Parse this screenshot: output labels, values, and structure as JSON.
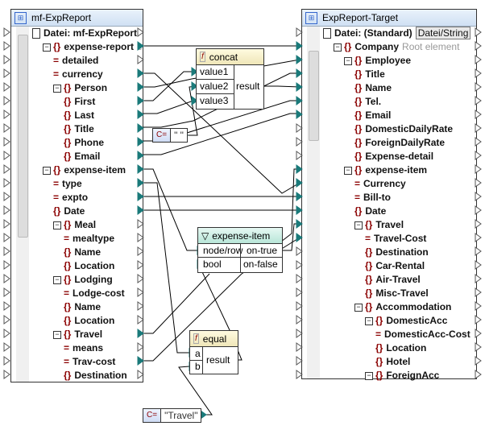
{
  "source": {
    "title": "mf-ExpReport",
    "file_label": "Datei: mf-ExpReport",
    "rows": [
      {
        "label": "Datei: mf-ExpReport",
        "kind": "doc",
        "level": 0
      },
      {
        "label": "expense-report",
        "kind": "el",
        "level": 1,
        "exp": true,
        "hint": "e"
      },
      {
        "label": "detailed",
        "kind": "at",
        "level": 2
      },
      {
        "label": "currency",
        "kind": "at",
        "level": 2
      },
      {
        "label": "Person",
        "kind": "el",
        "level": 2,
        "exp": true
      },
      {
        "label": "First",
        "kind": "el",
        "level": 3
      },
      {
        "label": "Last",
        "kind": "el",
        "level": 3
      },
      {
        "label": "Title",
        "kind": "el",
        "level": 3
      },
      {
        "label": "Phone",
        "kind": "el",
        "level": 3
      },
      {
        "label": "Email",
        "kind": "el",
        "level": 3
      },
      {
        "label": "expense-item",
        "kind": "el",
        "level": 1,
        "exp": true
      },
      {
        "label": "type",
        "kind": "at",
        "level": 2
      },
      {
        "label": "expto",
        "kind": "at",
        "level": 2
      },
      {
        "label": "Date",
        "kind": "el",
        "level": 2
      },
      {
        "label": "Meal",
        "kind": "el",
        "level": 2,
        "exp": true
      },
      {
        "label": "mealtype",
        "kind": "at",
        "level": 3
      },
      {
        "label": "Name",
        "kind": "el",
        "level": 3
      },
      {
        "label": "Location",
        "kind": "el",
        "level": 3
      },
      {
        "label": "Lodging",
        "kind": "el",
        "level": 2,
        "exp": true
      },
      {
        "label": "Lodge-cost",
        "kind": "at",
        "level": 3
      },
      {
        "label": "Name",
        "kind": "el",
        "level": 3
      },
      {
        "label": "Location",
        "kind": "el",
        "level": 3
      },
      {
        "label": "Travel",
        "kind": "el",
        "level": 2,
        "exp": true
      },
      {
        "label": "means",
        "kind": "at",
        "level": 3
      },
      {
        "label": "Trav-cost",
        "kind": "at",
        "level": 3
      },
      {
        "label": "Destination",
        "kind": "el",
        "level": 3
      }
    ]
  },
  "target": {
    "title": "ExpReport-Target",
    "file_button": "Datei/String",
    "rows": [
      {
        "label": "Datei: (Standard)",
        "kind": "doc",
        "level": 0,
        "button": true
      },
      {
        "label": "Company",
        "kind": "el",
        "level": 1,
        "exp": true,
        "hint": "Root element"
      },
      {
        "label": "Employee",
        "kind": "el",
        "level": 2,
        "exp": true
      },
      {
        "label": "Title",
        "kind": "el",
        "level": 3
      },
      {
        "label": "Name",
        "kind": "el",
        "level": 3
      },
      {
        "label": "Tel.",
        "kind": "el",
        "level": 3
      },
      {
        "label": "Email",
        "kind": "el",
        "level": 3
      },
      {
        "label": "DomesticDailyRate",
        "kind": "el",
        "level": 3
      },
      {
        "label": "ForeignDailyRate",
        "kind": "el",
        "level": 3
      },
      {
        "label": "Expense-detail",
        "kind": "el",
        "level": 3
      },
      {
        "label": "expense-item",
        "kind": "el",
        "level": 2,
        "exp": true
      },
      {
        "label": "Currency",
        "kind": "at",
        "level": 3
      },
      {
        "label": "Bill-to",
        "kind": "at",
        "level": 3
      },
      {
        "label": "Date",
        "kind": "el",
        "level": 3
      },
      {
        "label": "Travel",
        "kind": "el",
        "level": 3,
        "exp": true
      },
      {
        "label": "Travel-Cost",
        "kind": "at",
        "level": 4
      },
      {
        "label": "Destination",
        "kind": "el",
        "level": 4
      },
      {
        "label": "Car-Rental",
        "kind": "el",
        "level": 4
      },
      {
        "label": "Air-Travel",
        "kind": "el",
        "level": 4
      },
      {
        "label": "Misc-Travel",
        "kind": "el",
        "level": 4
      },
      {
        "label": "Accommodation",
        "kind": "el",
        "level": 3,
        "exp": true
      },
      {
        "label": "DomesticAcc",
        "kind": "el",
        "level": 4,
        "exp": true
      },
      {
        "label": "DomesticAcc-Cost",
        "kind": "at",
        "level": 5
      },
      {
        "label": "Location",
        "kind": "el",
        "level": 5
      },
      {
        "label": "Hotel",
        "kind": "el",
        "level": 5
      },
      {
        "label": "ForeignAcc",
        "kind": "el",
        "level": 4,
        "exp": true
      }
    ]
  },
  "concat": {
    "title": "concat",
    "inputs": [
      "value1",
      "value2",
      "value3"
    ],
    "output": "result"
  },
  "filter": {
    "title": "expense-item",
    "inputs": [
      "node/row",
      "bool"
    ],
    "outputs": [
      "on-true",
      "on-false"
    ]
  },
  "equal": {
    "title": "equal",
    "inputs": [
      "a",
      "b"
    ],
    "output": "result"
  },
  "constants": {
    "space": "\" \"",
    "travel": "\"Travel\""
  },
  "colors": {
    "connector": "#1a7a7a",
    "element": "#8b0000"
  }
}
